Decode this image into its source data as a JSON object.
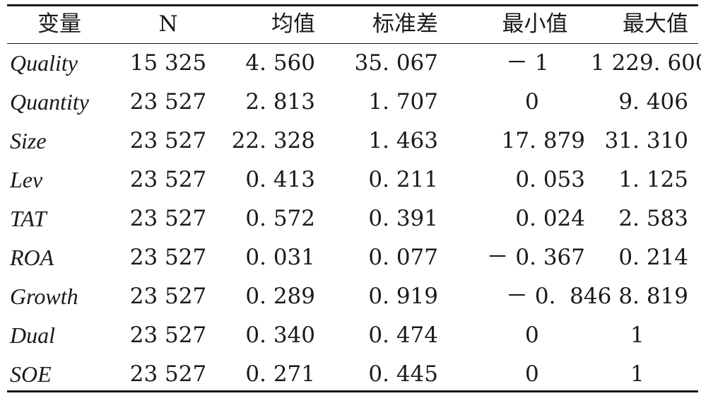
{
  "table": {
    "headers": [
      "变量",
      "N",
      "均值",
      "标准差",
      "最小值",
      "最大值"
    ],
    "rows": [
      {
        "variable": "Quality",
        "n": "15 325",
        "mean": "4. 560",
        "sd": "35. 067",
        "min": "－ 1",
        "max": "1 229. 600"
      },
      {
        "variable": "Quantity",
        "n": "23 527",
        "mean": "2. 813",
        "sd": "1. 707",
        "min": "0",
        "max": "9. 406"
      },
      {
        "variable": "Size",
        "n": "23 527",
        "mean": "22. 328",
        "sd": "1. 463",
        "min": "17. 879",
        "max": "31. 310"
      },
      {
        "variable": "Lev",
        "n": "23 527",
        "mean": "0. 413",
        "sd": "0. 211",
        "min": "0. 053",
        "max": "1. 125"
      },
      {
        "variable": "TAT",
        "n": "23 527",
        "mean": "0. 572",
        "sd": "0. 391",
        "min": "0. 024",
        "max": "2. 583"
      },
      {
        "variable": "ROA",
        "n": "23 527",
        "mean": "0. 031",
        "sd": "0. 077",
        "min": "－ 0. 367",
        "max": "0. 214"
      },
      {
        "variable": "Growth",
        "n": "23 527",
        "mean": "0. 289",
        "sd": "0. 919",
        "min": "－ 0.  846",
        "max": "8. 819"
      },
      {
        "variable": "Dual",
        "n": "23 527",
        "mean": "0. 340",
        "sd": "0. 474",
        "min": "0",
        "max": "1"
      },
      {
        "variable": "SOE",
        "n": "23 527",
        "mean": "0. 271",
        "sd": "0. 445",
        "min": "0",
        "max": "1"
      }
    ]
  }
}
